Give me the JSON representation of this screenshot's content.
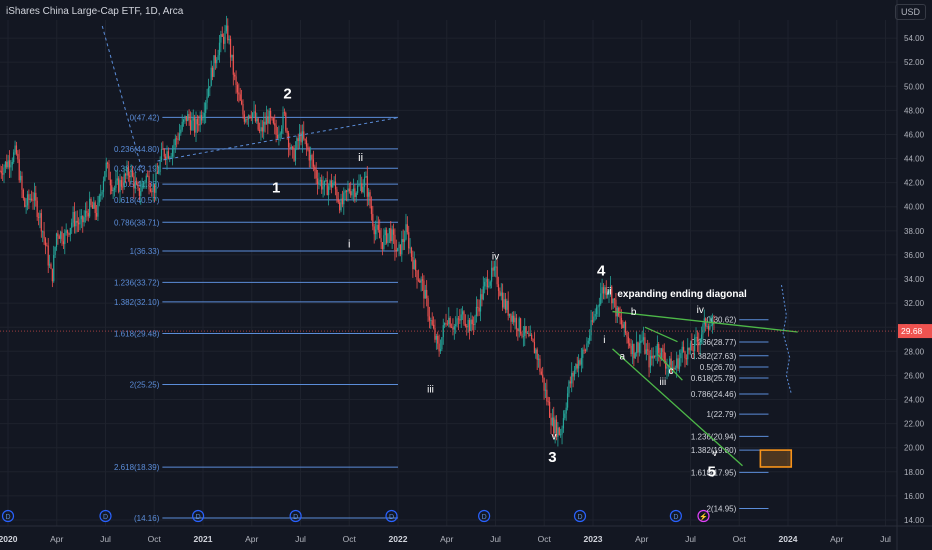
{
  "header": {
    "title": "iShares China Large-Cap ETF, 1D, Arca",
    "currency": "USD"
  },
  "colors": {
    "bg": "#131722",
    "grid": "#1e222d",
    "fib": "#5b8dd9",
    "up": "#26a69a",
    "down": "#ef5350",
    "trend": "#4db848",
    "box": "#f7931a",
    "text": "#ffffff",
    "axis": "#b2b5be"
  },
  "chart_data": {
    "type": "candlestick",
    "ylim": [
      13.5,
      55.5
    ],
    "y_ticks": [
      14,
      16,
      18,
      20,
      22,
      24,
      26,
      28,
      30,
      32,
      34,
      36,
      38,
      40,
      42,
      44,
      46,
      48,
      50,
      52,
      54
    ],
    "y_tick_labels": [
      "14.00",
      "16.00",
      "18.00",
      "20.00",
      "22.00",
      "24.00",
      "26.00",
      "28.00",
      "30.00",
      "32.00",
      "34.00",
      "36.00",
      "38.00",
      "40.00",
      "42.00",
      "44.00",
      "46.00",
      "48.00",
      "50.00",
      "52.00",
      "54.00"
    ],
    "x_ticks": [
      {
        "t": 0,
        "label": "2020",
        "bold": true
      },
      {
        "t": 3,
        "label": "Apr"
      },
      {
        "t": 6,
        "label": "Jul"
      },
      {
        "t": 9,
        "label": "Oct"
      },
      {
        "t": 12,
        "label": "2021",
        "bold": true
      },
      {
        "t": 15,
        "label": "Apr"
      },
      {
        "t": 18,
        "label": "Jul"
      },
      {
        "t": 21,
        "label": "Oct"
      },
      {
        "t": 24,
        "label": "2022",
        "bold": true
      },
      {
        "t": 27,
        "label": "Apr"
      },
      {
        "t": 30,
        "label": "Jul"
      },
      {
        "t": 33,
        "label": "Oct"
      },
      {
        "t": 36,
        "label": "2023",
        "bold": true
      },
      {
        "t": 39,
        "label": "Apr"
      },
      {
        "t": 42,
        "label": "Jul"
      },
      {
        "t": 45,
        "label": "Oct"
      },
      {
        "t": 48,
        "label": "2024",
        "bold": true
      },
      {
        "t": 51,
        "label": "Apr"
      },
      {
        "t": 54,
        "label": "Jul"
      }
    ],
    "price_path": [
      [
        -0.5,
        43.0
      ],
      [
        0.5,
        44.5
      ],
      [
        1,
        40
      ],
      [
        1.5,
        41
      ],
      [
        2,
        39
      ],
      [
        2.7,
        34
      ],
      [
        3,
        38
      ],
      [
        3.5,
        37.5
      ],
      [
        4,
        39
      ],
      [
        4.5,
        38.5
      ],
      [
        5,
        40
      ],
      [
        5.5,
        39.5
      ],
      [
        6,
        43.5
      ],
      [
        6.5,
        41.5
      ],
      [
        7,
        42
      ],
      [
        7.5,
        43
      ],
      [
        8,
        41
      ],
      [
        8.5,
        42.5
      ],
      [
        9,
        41.5
      ],
      [
        9.5,
        44.5
      ],
      [
        10,
        44.6
      ],
      [
        10.5,
        46
      ],
      [
        11,
        47.5
      ],
      [
        11.5,
        46.5
      ],
      [
        12,
        48
      ],
      [
        12.5,
        51
      ],
      [
        13,
        53.5
      ],
      [
        13.5,
        54.5
      ],
      [
        14,
        50
      ],
      [
        14.5,
        47.5
      ],
      [
        15,
        48
      ],
      [
        15.5,
        46
      ],
      [
        16,
        47.5
      ],
      [
        16.5,
        46
      ],
      [
        17,
        47.5
      ],
      [
        17.5,
        44
      ],
      [
        18,
        46
      ],
      [
        18.5,
        44.5
      ],
      [
        19,
        42.5
      ],
      [
        19.5,
        41.5
      ],
      [
        20,
        42
      ],
      [
        20.5,
        40
      ],
      [
        21,
        41.5
      ],
      [
        21.5,
        41.5
      ],
      [
        22,
        42.2
      ],
      [
        22.5,
        38.5
      ],
      [
        23,
        37
      ],
      [
        23.5,
        38
      ],
      [
        24,
        36
      ],
      [
        24.5,
        38
      ],
      [
        25,
        35
      ],
      [
        25.5,
        33.5
      ],
      [
        26,
        30.5
      ],
      [
        26.5,
        28
      ],
      [
        27,
        31
      ],
      [
        27.5,
        30
      ],
      [
        28,
        31
      ],
      [
        28.5,
        30
      ],
      [
        29,
        32
      ],
      [
        29.5,
        34
      ],
      [
        30,
        34.5
      ],
      [
        30.5,
        32
      ],
      [
        31,
        31
      ],
      [
        31.5,
        30
      ],
      [
        32,
        29
      ],
      [
        32.5,
        28
      ],
      [
        33,
        25
      ],
      [
        33.5,
        22
      ],
      [
        34,
        21.2
      ],
      [
        34.5,
        25
      ],
      [
        35,
        27
      ],
      [
        35.5,
        28
      ],
      [
        36,
        30.5
      ],
      [
        36.5,
        33
      ],
      [
        37,
        33.4
      ],
      [
        37.5,
        31
      ],
      [
        38,
        29.5
      ],
      [
        38.5,
        28
      ],
      [
        39,
        29
      ],
      [
        39.5,
        27
      ],
      [
        40,
        28.5
      ],
      [
        40.5,
        27
      ],
      [
        41,
        26.5
      ],
      [
        41.5,
        28
      ],
      [
        42,
        28
      ],
      [
        42.5,
        29
      ],
      [
        43,
        30.6
      ],
      [
        43.5,
        29.7
      ]
    ],
    "fib_retracement": {
      "x_start": 9.5,
      "x_end": 24,
      "levels": [
        {
          "label": "0(47.42)",
          "value": 47.42
        },
        {
          "label": "0.236(44.80)",
          "value": 44.8
        },
        {
          "label": "0.382(43.19)",
          "value": 43.19
        },
        {
          "label": "0.5(41.88)",
          "value": 41.88
        },
        {
          "label": "0.618(40.57)",
          "value": 40.57
        },
        {
          "label": "0.786(38.71)",
          "value": 38.71
        },
        {
          "label": "1(36.33)",
          "value": 36.33
        },
        {
          "label": "1.236(33.72)",
          "value": 33.72
        },
        {
          "label": "1.382(32.10)",
          "value": 32.1
        },
        {
          "label": "1.618(29.48)",
          "value": 29.48
        },
        {
          "label": "2(25.25)",
          "value": 25.25
        },
        {
          "label": "2.618(18.39)",
          "value": 18.39
        },
        {
          "label": "(14.16)",
          "value": 14.16
        }
      ]
    },
    "fib_extension": {
      "x_start": 45,
      "x_end": 46.8,
      "levels": [
        {
          "label": "0(30.62)",
          "value": 30.62
        },
        {
          "label": "0.236(28.77)",
          "value": 28.77
        },
        {
          "label": "0.382(27.63)",
          "value": 27.63
        },
        {
          "label": "0.5(26.70)",
          "value": 26.7
        },
        {
          "label": "0.618(25.78)",
          "value": 25.78
        },
        {
          "label": "0.786(24.46)",
          "value": 24.46
        },
        {
          "label": "1(22.79)",
          "value": 22.79
        },
        {
          "label": "1.236(20.94)",
          "value": 20.94
        },
        {
          "label": "1.382(19.80)",
          "value": 19.8
        },
        {
          "label": "1.618(17.95)",
          "value": 17.95
        },
        {
          "label": "2(14.95)",
          "value": 14.95
        }
      ]
    },
    "trendlines": [
      {
        "kind": "dashed",
        "from": [
          5.8,
          55.0
        ],
        "to": [
          8.3,
          42.8
        ],
        "color": "fib"
      },
      {
        "kind": "dashed",
        "from": [
          9.2,
          43.8
        ],
        "to": [
          24,
          47.4
        ],
        "color": "fib"
      },
      {
        "kind": "solid",
        "from": [
          37.2,
          31.3
        ],
        "to": [
          48.6,
          29.6
        ],
        "color": "trend"
      },
      {
        "kind": "solid",
        "from": [
          37.2,
          28.2
        ],
        "to": [
          45.2,
          18.5
        ],
        "color": "trend"
      },
      {
        "kind": "solid",
        "from": [
          39.2,
          30
        ],
        "to": [
          41.2,
          28.8
        ],
        "color": "trend"
      },
      {
        "kind": "solid",
        "from": [
          40,
          27.7
        ],
        "to": [
          41.5,
          25.6
        ],
        "color": "trend"
      }
    ],
    "target_box": {
      "x0": 46.3,
      "x1": 48.2,
      "y0": 18.4,
      "y1": 19.8
    },
    "last_price": {
      "value": 29.68,
      "label": "29.68"
    },
    "wave_labels": [
      {
        "text": "2",
        "t": 17.2,
        "y": 49.0,
        "size": 15
      },
      {
        "text": "1",
        "t": 16.5,
        "y": 41.2,
        "size": 15
      },
      {
        "text": "ii",
        "t": 21.7,
        "y": 43.8,
        "size": 11
      },
      {
        "text": "i",
        "t": 21.0,
        "y": 36.6,
        "size": 11
      },
      {
        "text": "iii",
        "t": 26.0,
        "y": 24.6,
        "size": 10
      },
      {
        "text": "iv",
        "t": 30.0,
        "y": 35.6,
        "size": 10
      },
      {
        "text": "v",
        "t": 33.6,
        "y": 20.7,
        "size": 10
      },
      {
        "text": "3",
        "t": 33.5,
        "y": 18.8,
        "size": 15
      },
      {
        "text": "4",
        "t": 36.5,
        "y": 34.3,
        "size": 15
      },
      {
        "text": "ii",
        "t": 37.0,
        "y": 32.7,
        "size": 10
      },
      {
        "text": "expanding ending diagonal",
        "t": 37.5,
        "y": 32.5,
        "size": 10,
        "anchor": "start",
        "bold": true
      },
      {
        "text": "i",
        "t": 36.7,
        "y": 28.7,
        "size": 10
      },
      {
        "text": "b",
        "t": 38.5,
        "y": 31.0,
        "size": 10
      },
      {
        "text": "a",
        "t": 37.8,
        "y": 27.3,
        "size": 10
      },
      {
        "text": "iii",
        "t": 40.3,
        "y": 25.2,
        "size": 10
      },
      {
        "text": "c",
        "t": 40.8,
        "y": 26.1,
        "size": 10
      },
      {
        "text": "iv",
        "t": 42.6,
        "y": 31.2,
        "size": 10
      },
      {
        "text": "v",
        "t": 43.5,
        "y": 19.3,
        "size": 10
      },
      {
        "text": "5",
        "t": 43.3,
        "y": 17.6,
        "size": 15
      }
    ],
    "event_markers": [
      {
        "t": 0.0,
        "kind": "dividend",
        "label": "D"
      },
      {
        "t": 6.0,
        "kind": "dividend",
        "label": "D"
      },
      {
        "t": 11.7,
        "kind": "dividend",
        "label": "D"
      },
      {
        "t": 17.7,
        "kind": "dividend",
        "label": "D"
      },
      {
        "t": 23.6,
        "kind": "dividend",
        "label": "D"
      },
      {
        "t": 29.3,
        "kind": "dividend",
        "label": "D"
      },
      {
        "t": 35.2,
        "kind": "dividend",
        "label": "D"
      },
      {
        "t": 41.1,
        "kind": "dividend",
        "label": "D"
      },
      {
        "t": 42.8,
        "kind": "split",
        "label": "⚡"
      }
    ]
  }
}
